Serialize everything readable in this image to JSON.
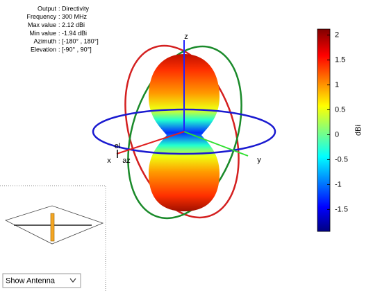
{
  "info": [
    {
      "label": "Output",
      "value": "Directivity"
    },
    {
      "label": "Frequency",
      "value": "300 MHz"
    },
    {
      "label": "Max value",
      "value": "2.12 dBi"
    },
    {
      "label": "Min value",
      "value": "-1.94 dBi"
    },
    {
      "label": "Azimuth",
      "value": "[-180° , 180°]"
    },
    {
      "label": "Elevation",
      "value": "[-90° , 90°]"
    }
  ],
  "axes_labels": {
    "z": "z",
    "y": "y",
    "x": "x",
    "el": "el",
    "az": "az"
  },
  "colorbar": {
    "label": "dBi",
    "lim": [
      -1.94,
      2.12
    ],
    "ticks": [
      -1.5,
      -1,
      -0.5,
      0,
      0.5,
      1,
      1.5,
      2
    ]
  },
  "dropdown": "Show Antenna"
}
